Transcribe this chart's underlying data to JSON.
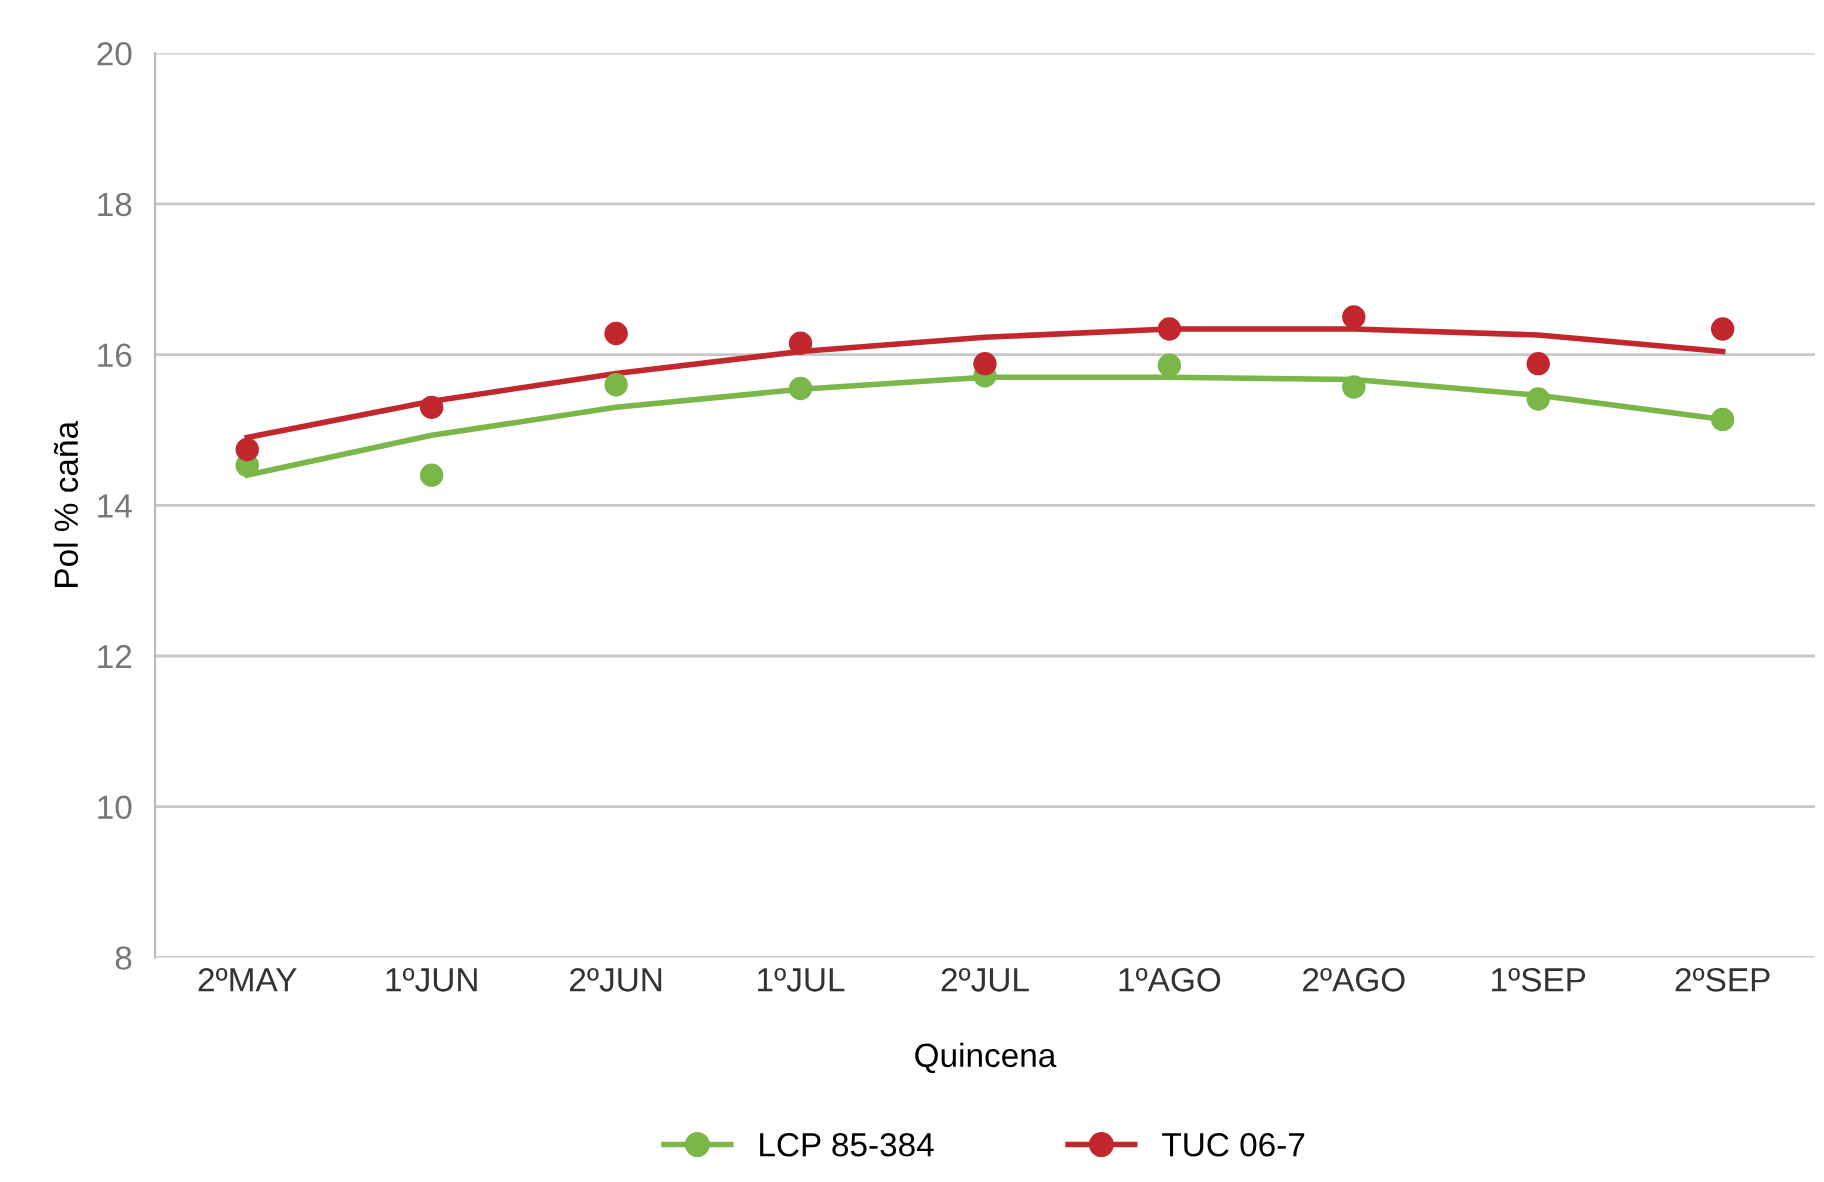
{
  "chart_data": {
    "type": "scatter",
    "xlabel": "Quincena",
    "ylabel": "Pol % caña",
    "categories": [
      "2ºMAY",
      "1ºJUN",
      "2ºJUN",
      "1ºJUL",
      "2ºJUL",
      "1ºAGO",
      "2ºAGO",
      "1ºSEP",
      "2ºSEP"
    ],
    "series": [
      {
        "name": "LCP 85-384",
        "color": "#7ab648",
        "values": [
          14.53,
          14.4,
          15.6,
          15.55,
          15.72,
          15.86,
          15.57,
          15.41,
          15.14
        ]
      },
      {
        "name": "TUC 06-7",
        "color": "#c1272d",
        "values": [
          14.74,
          15.3,
          16.28,
          16.15,
          15.88,
          16.34,
          16.5,
          15.88,
          16.34
        ]
      },
      {
        "color": "#7ab648",
        "type": "line",
        "marker": "none",
        "values": [
          14.4,
          14.93,
          15.3,
          15.54,
          15.7,
          15.7,
          15.67,
          15.46,
          15.14
        ]
      },
      {
        "color": "#c1272d",
        "type": "line",
        "marker": "none",
        "values": [
          14.9,
          15.38,
          15.75,
          16.04,
          16.23,
          16.34,
          16.34,
          16.26,
          16.04
        ]
      }
    ],
    "ylim": [
      8,
      20
    ],
    "yticks": [
      8,
      10,
      12,
      14,
      16,
      18,
      20
    ],
    "grid": "y",
    "legend": "bottom",
    "marker": "circle"
  }
}
